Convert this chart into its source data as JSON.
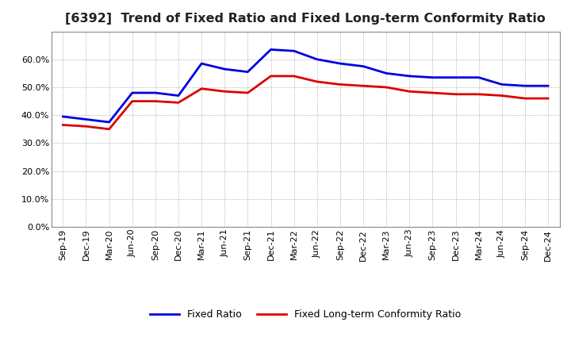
{
  "title": "[6392]  Trend of Fixed Ratio and Fixed Long-term Conformity Ratio",
  "x_labels": [
    "Sep-19",
    "Dec-19",
    "Mar-20",
    "Jun-20",
    "Sep-20",
    "Dec-20",
    "Mar-21",
    "Jun-21",
    "Sep-21",
    "Dec-21",
    "Mar-22",
    "Jun-22",
    "Sep-22",
    "Dec-22",
    "Mar-23",
    "Jun-23",
    "Sep-23",
    "Dec-23",
    "Mar-24",
    "Jun-24",
    "Sep-24",
    "Dec-24"
  ],
  "fixed_ratio": [
    39.5,
    38.5,
    37.5,
    48.0,
    48.0,
    47.0,
    58.5,
    56.5,
    55.5,
    63.5,
    63.0,
    60.0,
    58.5,
    57.5,
    55.0,
    54.0,
    53.5,
    53.5,
    53.5,
    51.0,
    50.5,
    50.5
  ],
  "fixed_lt_ratio": [
    36.5,
    36.0,
    35.0,
    45.0,
    45.0,
    44.5,
    49.5,
    48.5,
    48.0,
    54.0,
    54.0,
    52.0,
    51.0,
    50.5,
    50.0,
    48.5,
    48.0,
    47.5,
    47.5,
    47.0,
    46.0,
    46.0
  ],
  "fixed_ratio_color": "#0000dd",
  "fixed_lt_ratio_color": "#dd0000",
  "ylim": [
    0,
    70
  ],
  "yticks": [
    0,
    10,
    20,
    30,
    40,
    50,
    60
  ],
  "background_color": "#ffffff",
  "plot_bg_color": "#ffffff",
  "grid_color": "#999999",
  "title_fontsize": 11.5,
  "legend_fontsize": 9,
  "tick_fontsize": 8,
  "line_width": 2.0
}
